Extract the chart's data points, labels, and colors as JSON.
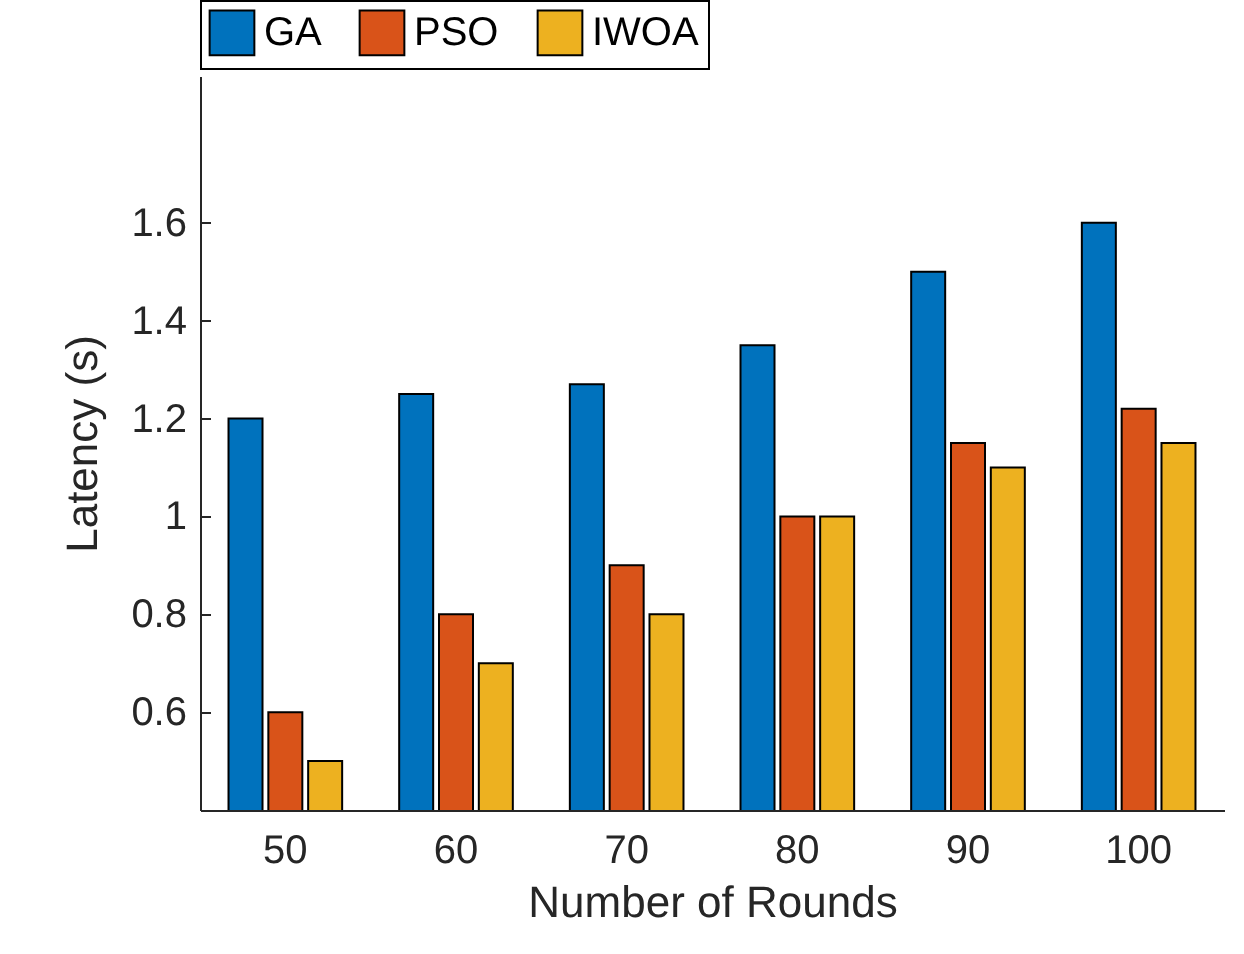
{
  "chart_data": {
    "type": "bar",
    "xlabel": "Number of Rounds",
    "ylabel": "Latency (s)",
    "categories": [
      "50",
      "60",
      "70",
      "80",
      "90",
      "100"
    ],
    "series": [
      {
        "name": "GA",
        "color": "#0072bd",
        "values": [
          1.2,
          1.25,
          1.27,
          1.35,
          1.5,
          1.6
        ]
      },
      {
        "name": "PSO",
        "color": "#d95319",
        "values": [
          0.6,
          0.8,
          0.9,
          1.0,
          1.15,
          1.22
        ]
      },
      {
        "name": "IWOA",
        "color": "#edb120",
        "values": [
          0.5,
          0.7,
          0.8,
          1.0,
          1.1,
          1.15
        ]
      }
    ],
    "ylim": [
      0.4,
      1.9
    ],
    "yticks": [
      0.6,
      0.8,
      1,
      1.2,
      1.4,
      1.6
    ],
    "grid": false,
    "legend": "top"
  }
}
